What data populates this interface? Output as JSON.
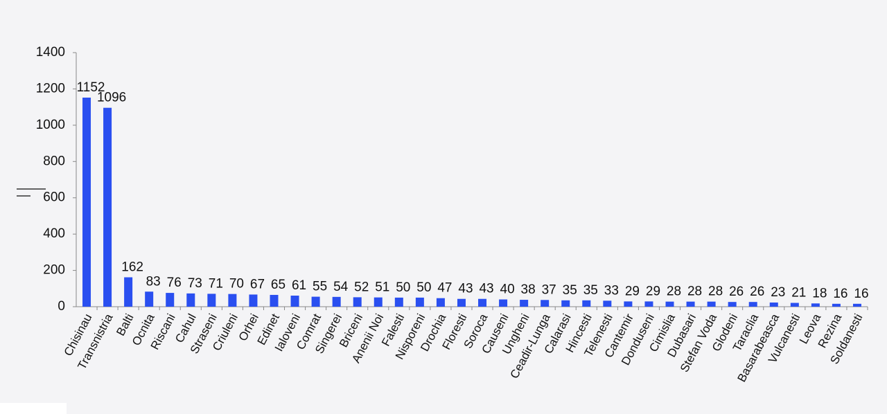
{
  "chart_data": {
    "type": "bar",
    "categories": [
      "Chisinau",
      "Transnistria",
      "Balti",
      "Ocnita",
      "Riscani",
      "Cahul",
      "Straseni",
      "Criuleni",
      "Orhei",
      "Edinet",
      "Ialoveni",
      "Comrat",
      "Singerei",
      "Briceni",
      "Anenii Noi",
      "Falesti",
      "Nisporeni",
      "Drochia",
      "Floresti",
      "Soroca",
      "Causeni",
      "Ungheni",
      "Ceadir-Lunga",
      "Calarasi",
      "Hincesti",
      "Telenesti",
      "Cantemir",
      "Donduseni",
      "Cimislia",
      "Dubasari",
      "Stefan Voda",
      "Glodeni",
      "Taraclia",
      "Basarabeasca",
      "Vulcanesti",
      "Leova",
      "Rezina",
      "Soldanesti"
    ],
    "values": [
      1152,
      1096,
      162,
      83,
      76,
      73,
      71,
      70,
      67,
      65,
      61,
      55,
      54,
      52,
      51,
      50,
      50,
      47,
      43,
      43,
      40,
      38,
      37,
      35,
      35,
      33,
      29,
      29,
      28,
      28,
      28,
      26,
      26,
      23,
      21,
      18,
      16,
      16
    ],
    "color": "#2a4ff0",
    "ylim": [
      0,
      1400
    ],
    "yticks": [
      0,
      200,
      400,
      600,
      800,
      1000,
      1200,
      1400
    ],
    "grid": false
  }
}
